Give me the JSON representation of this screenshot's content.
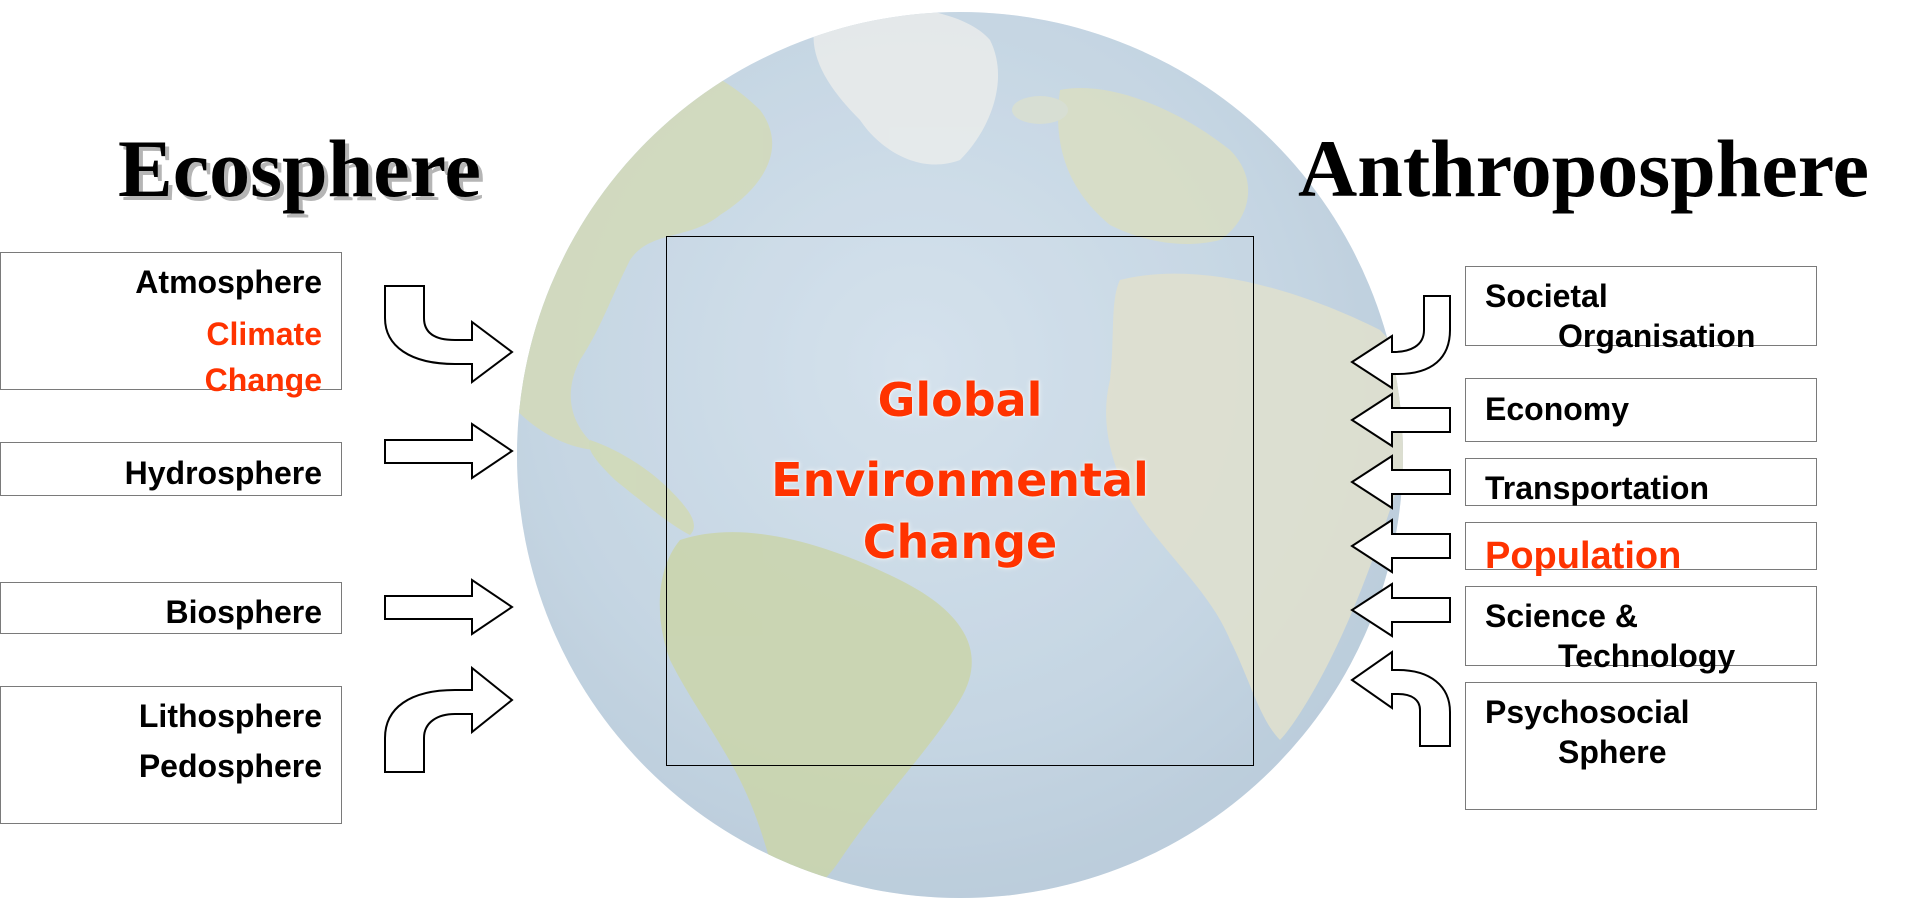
{
  "headings": {
    "left": "Ecosphere",
    "right": "Anthroposphere"
  },
  "left_items": [
    {
      "label": "Atmosphere",
      "extra": "Climate Change",
      "extra_line1": "Climate",
      "extra_line2": "Change"
    },
    {
      "label": "Hydrosphere"
    },
    {
      "label": "Biosphere"
    },
    {
      "label": "Lithosphere",
      "label2": "Pedosphere"
    }
  ],
  "center": {
    "line1": "Global",
    "line2": "Environmental",
    "line3": "Change"
  },
  "right_items": [
    {
      "label": "Societal",
      "label2": "Organisation"
    },
    {
      "label": "Economy"
    },
    {
      "label": "Transportation"
    },
    {
      "label": "Population"
    },
    {
      "label": "Science &",
      "label2": "Technology"
    },
    {
      "label": "Psychosocial",
      "label2": "Sphere"
    }
  ],
  "colors": {
    "highlight": "#ff3300",
    "ocean": "#b9cfdf",
    "land": "#c8d4a8"
  }
}
